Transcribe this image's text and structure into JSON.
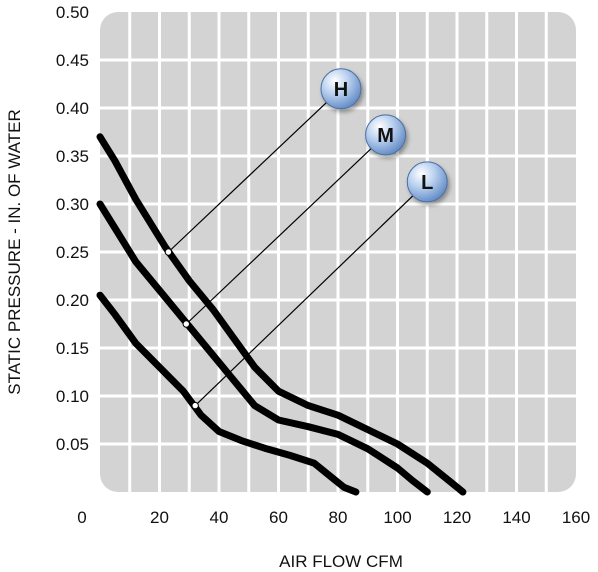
{
  "chart_data": {
    "type": "line",
    "title": "",
    "xlabel": "AIR FLOW CFM",
    "ylabel": "STATIC PRESSURE - IN. OF WATER",
    "xlim": [
      0,
      160
    ],
    "ylim": [
      0,
      0.5
    ],
    "x_ticks": [
      0,
      20,
      40,
      60,
      80,
      100,
      120,
      140,
      160
    ],
    "x_tick_labels": [
      "0",
      "20",
      "40",
      "60",
      "80",
      "100",
      "120",
      "140",
      "160"
    ],
    "y_ticks": [
      0.05,
      0.1,
      0.15,
      0.2,
      0.25,
      0.3,
      0.35,
      0.4,
      0.45,
      0.5
    ],
    "y_tick_labels": [
      "0.05",
      "0.10",
      "0.15",
      "0.20",
      "0.25",
      "0.30",
      "0.35",
      "0.40",
      "0.45",
      "0.50"
    ],
    "grid": true,
    "legend": "none",
    "colors": {
      "plot_bg": "#d3d3d4",
      "grid": "#ffffff",
      "curve": "#000000",
      "badge": "#8fb3e0"
    },
    "series": [
      {
        "name": "H",
        "points": [
          [
            0,
            0.37
          ],
          [
            5,
            0.345
          ],
          [
            12,
            0.305
          ],
          [
            22,
            0.255
          ],
          [
            30,
            0.22
          ],
          [
            38,
            0.19
          ],
          [
            45,
            0.16
          ],
          [
            52,
            0.13
          ],
          [
            60,
            0.105
          ],
          [
            70,
            0.09
          ],
          [
            80,
            0.08
          ],
          [
            90,
            0.065
          ],
          [
            100,
            0.05
          ],
          [
            110,
            0.03
          ],
          [
            118,
            0.01
          ],
          [
            122,
            0.0
          ]
        ],
        "label_point": [
          23,
          0.25
        ],
        "badge_point": [
          81,
          0.42
        ]
      },
      {
        "name": "M",
        "points": [
          [
            0,
            0.3
          ],
          [
            5,
            0.275
          ],
          [
            12,
            0.24
          ],
          [
            20,
            0.21
          ],
          [
            28,
            0.18
          ],
          [
            36,
            0.15
          ],
          [
            44,
            0.12
          ],
          [
            52,
            0.09
          ],
          [
            60,
            0.075
          ],
          [
            70,
            0.068
          ],
          [
            80,
            0.06
          ],
          [
            90,
            0.045
          ],
          [
            100,
            0.025
          ],
          [
            105,
            0.012
          ],
          [
            110,
            0.0
          ]
        ],
        "label_point": [
          29,
          0.175
        ],
        "badge_point": [
          96,
          0.372
        ]
      },
      {
        "name": "L",
        "points": [
          [
            0,
            0.205
          ],
          [
            5,
            0.185
          ],
          [
            12,
            0.155
          ],
          [
            20,
            0.13
          ],
          [
            28,
            0.105
          ],
          [
            34,
            0.08
          ],
          [
            40,
            0.063
          ],
          [
            48,
            0.053
          ],
          [
            56,
            0.045
          ],
          [
            64,
            0.038
          ],
          [
            72,
            0.03
          ],
          [
            78,
            0.015
          ],
          [
            82,
            0.005
          ],
          [
            86,
            0.0
          ]
        ],
        "label_point": [
          32,
          0.09
        ],
        "badge_point": [
          110,
          0.323
        ]
      }
    ]
  }
}
